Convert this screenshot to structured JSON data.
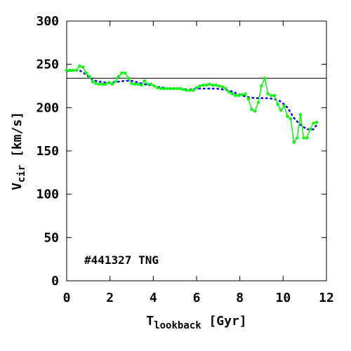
{
  "chart_data": {
    "type": "line",
    "xlabel": {
      "main": "T",
      "sub": "lookback",
      "unit": " [Gyr]"
    },
    "ylabel": {
      "main": "V",
      "sub": "cir",
      "unit": " [km/s]"
    },
    "xlim": [
      0,
      12
    ],
    "ylim": [
      0,
      300
    ],
    "xticks": [
      0,
      2,
      4,
      6,
      8,
      10,
      12
    ],
    "yticks": [
      0,
      50,
      100,
      150,
      200,
      250,
      300
    ],
    "annotation": "#441327 TNG",
    "reference_line": {
      "y": 234,
      "color": "#000000"
    },
    "series": [
      {
        "style": "solid-with-markers",
        "color": "#00ff00",
        "x": [
          0.0,
          0.15,
          0.3,
          0.45,
          0.6,
          0.75,
          0.9,
          1.05,
          1.2,
          1.35,
          1.5,
          1.65,
          1.8,
          1.95,
          2.1,
          2.25,
          2.4,
          2.55,
          2.7,
          2.85,
          3.0,
          3.15,
          3.3,
          3.45,
          3.6,
          3.75,
          3.9,
          4.05,
          4.2,
          4.35,
          4.5,
          4.65,
          4.8,
          4.95,
          5.1,
          5.25,
          5.4,
          5.55,
          5.7,
          5.85,
          6.0,
          6.15,
          6.3,
          6.45,
          6.6,
          6.75,
          6.9,
          7.05,
          7.2,
          7.35,
          7.5,
          7.65,
          7.8,
          7.95,
          8.1,
          8.25,
          8.4,
          8.55,
          8.7,
          8.85,
          9.0,
          9.15,
          9.3,
          9.45,
          9.6,
          9.75,
          9.9,
          10.05,
          10.2,
          10.35,
          10.5,
          10.65,
          10.8,
          10.95,
          11.1,
          11.25,
          11.4,
          11.55
        ],
        "y": [
          243,
          243,
          243,
          243,
          248,
          247,
          240,
          236,
          230,
          228,
          227,
          227,
          227,
          229,
          227,
          230,
          236,
          240,
          240,
          234,
          228,
          227,
          227,
          226,
          231,
          227,
          227,
          225,
          223,
          222,
          222,
          222,
          222,
          222,
          222,
          222,
          221,
          220,
          220,
          220,
          223,
          225,
          226,
          226,
          227,
          226,
          226,
          225,
          224,
          222,
          218,
          216,
          214,
          214,
          215,
          216,
          210,
          198,
          196,
          206,
          225,
          234,
          216,
          214,
          214,
          204,
          197,
          202,
          190,
          187,
          160,
          165,
          192,
          165,
          165,
          175,
          182,
          183
        ]
      },
      {
        "style": "dotted",
        "color": "#0000ff",
        "x": [
          0.0,
          0.3,
          0.6,
          0.9,
          1.2,
          1.5,
          1.8,
          2.1,
          2.4,
          2.7,
          3.0,
          3.3,
          3.6,
          3.9,
          4.2,
          4.5,
          4.8,
          5.1,
          5.4,
          5.7,
          6.0,
          6.3,
          6.6,
          6.9,
          7.2,
          7.5,
          7.8,
          8.1,
          8.4,
          8.7,
          9.0,
          9.3,
          9.6,
          9.9,
          10.2,
          10.5,
          10.8,
          11.1,
          11.4,
          11.55
        ],
        "y": [
          242,
          243,
          243,
          238,
          232,
          230,
          229,
          229,
          230,
          231,
          231,
          229,
          227,
          226,
          224,
          223,
          222,
          222,
          221,
          221,
          222,
          222,
          222,
          222,
          221,
          220,
          217,
          214,
          212,
          211,
          211,
          211,
          210,
          207,
          200,
          188,
          180,
          175,
          175,
          180
        ]
      }
    ]
  }
}
